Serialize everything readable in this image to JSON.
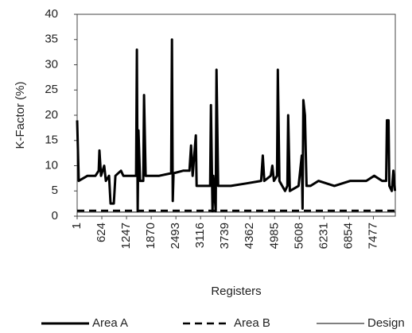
{
  "chart_data": {
    "type": "line",
    "x_label": "Registers",
    "y_label": "K-Factor (%)",
    "xlim": [
      1,
      8030
    ],
    "ylim": [
      0,
      40
    ],
    "xticks": [
      1,
      624,
      1247,
      1870,
      2493,
      3116,
      3739,
      4362,
      4985,
      5608,
      6231,
      6854,
      7477
    ],
    "yticks": [
      0,
      5,
      10,
      15,
      20,
      25,
      30,
      35,
      40
    ],
    "grid": false,
    "legend": "bottom",
    "series": [
      {
        "name": "Area A",
        "color": "#000000",
        "style": "solid",
        "width": 3,
        "x": [
          1,
          41,
          262,
          463,
          544,
          564,
          604,
          684,
          725,
          805,
          845,
          926,
          966,
          1107,
          1167,
          1368,
          1488,
          1509,
          1529,
          1549,
          1589,
          1669,
          1689,
          1730,
          2071,
          2373,
          2393,
          2413,
          2433,
          2674,
          2835,
          2875,
          2915,
          2996,
          3016,
          3277,
          3357,
          3378,
          3418,
          3438,
          3498,
          3518,
          3559,
          3880,
          4282,
          4644,
          4685,
          4725,
          4886,
          4926,
          4966,
          5046,
          5066,
          5106,
          5247,
          5307,
          5327,
          5368,
          5589,
          5669,
          5689,
          5709,
          5750,
          5790,
          5891,
          6092,
          6493,
          6895,
          7297,
          7498,
          7699,
          7800,
          7820,
          7860,
          7880,
          7941,
          7981,
          8021
        ],
        "values": [
          19,
          7,
          8,
          8,
          9,
          13,
          8,
          10,
          7,
          8,
          2.5,
          2.5,
          8,
          9,
          8,
          8,
          8,
          33,
          1,
          17,
          7,
          7,
          24,
          8,
          8,
          8.5,
          35,
          3,
          8.5,
          9,
          9,
          14,
          8,
          16,
          6,
          6,
          6,
          22,
          1,
          8,
          1,
          29,
          6,
          6,
          6.5,
          7,
          12,
          7,
          8,
          10,
          7,
          8,
          29,
          7,
          5,
          6,
          20,
          5,
          6,
          12,
          1.5,
          23,
          20,
          6,
          6,
          7,
          6,
          7,
          7,
          8,
          7,
          7,
          19,
          19,
          6,
          5,
          9,
          5
        ]
      },
      {
        "name": "Area B",
        "color": "#000000",
        "style": "dashed",
        "width": 2.5,
        "x": [
          1,
          8021
        ],
        "values": [
          1.1,
          1.1
        ]
      },
      {
        "name": "Design",
        "color": "#000000",
        "style": "solid",
        "width": 1,
        "x": [
          1,
          8021
        ],
        "values": [
          0.8,
          0.8
        ]
      }
    ]
  }
}
